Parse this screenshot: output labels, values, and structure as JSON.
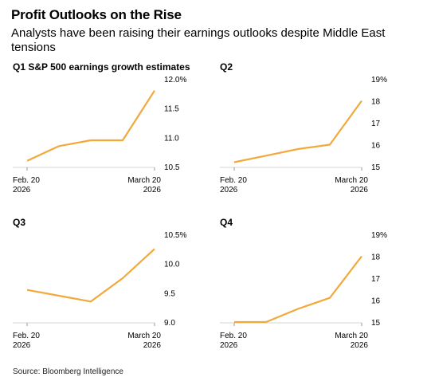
{
  "header": {
    "title": "Profit Outlooks on the Rise",
    "subtitle": "Analysts have been raising their earnings outlooks despite Middle East tensions"
  },
  "source": "Source: Bloomberg Intelligence",
  "colors": {
    "line": "#f2a93b",
    "axis": "#d6d6d6",
    "text": "#000000"
  },
  "chart_data": [
    {
      "type": "line",
      "title": "Q1 S&P 500 earnings growth estimates",
      "x": [
        "Feb. 20 2026",
        "",
        "",
        "",
        "March 20 2026"
      ],
      "x_tick_labels": [
        [
          "Feb. 20",
          "2026"
        ],
        [
          "March 20",
          "2026"
        ]
      ],
      "values": [
        10.6,
        10.85,
        10.95,
        10.95,
        11.8
      ],
      "y_ticks": [
        10.5,
        11.0,
        11.5,
        12.0
      ],
      "y_tick_labels": [
        "10.5",
        "11.0",
        "11.5",
        "12.0%"
      ],
      "ylim": [
        10.5,
        12.0
      ],
      "grid": false
    },
    {
      "type": "line",
      "title": "Q2",
      "x": [
        "Feb. 20 2026",
        "",
        "",
        "",
        "March 20 2026"
      ],
      "x_tick_labels": [
        [
          "Feb. 20",
          "2026"
        ],
        [
          "March 20",
          "2026"
        ]
      ],
      "values": [
        15.2,
        15.5,
        15.8,
        16.0,
        18.0
      ],
      "y_ticks": [
        15,
        16,
        17,
        18,
        19
      ],
      "y_tick_labels": [
        "15",
        "16",
        "17",
        "18",
        "19%"
      ],
      "ylim": [
        15,
        19
      ],
      "grid": false
    },
    {
      "type": "line",
      "title": "Q3",
      "x": [
        "Feb. 20 2026",
        "",
        "",
        "",
        "March 20 2026"
      ],
      "x_tick_labels": [
        [
          "Feb. 20",
          "2026"
        ],
        [
          "March 20",
          "2026"
        ]
      ],
      "values": [
        9.55,
        9.45,
        9.35,
        9.75,
        10.25
      ],
      "y_ticks": [
        9.0,
        9.5,
        10.0,
        10.5
      ],
      "y_tick_labels": [
        "9.0",
        "9.5",
        "10.0",
        "10.5%"
      ],
      "ylim": [
        9.0,
        10.5
      ],
      "grid": false
    },
    {
      "type": "line",
      "title": "Q4",
      "x": [
        "Feb. 20 2026",
        "",
        "",
        "",
        "March 20 2026"
      ],
      "x_tick_labels": [
        [
          "Feb. 20",
          "2026"
        ],
        [
          "March 20",
          "2026"
        ]
      ],
      "values": [
        15.0,
        15.0,
        15.6,
        16.1,
        18.0
      ],
      "y_ticks": [
        15,
        16,
        17,
        18,
        19
      ],
      "y_tick_labels": [
        "15",
        "16",
        "17",
        "18",
        "19%"
      ],
      "ylim": [
        15,
        19
      ],
      "grid": false
    }
  ]
}
